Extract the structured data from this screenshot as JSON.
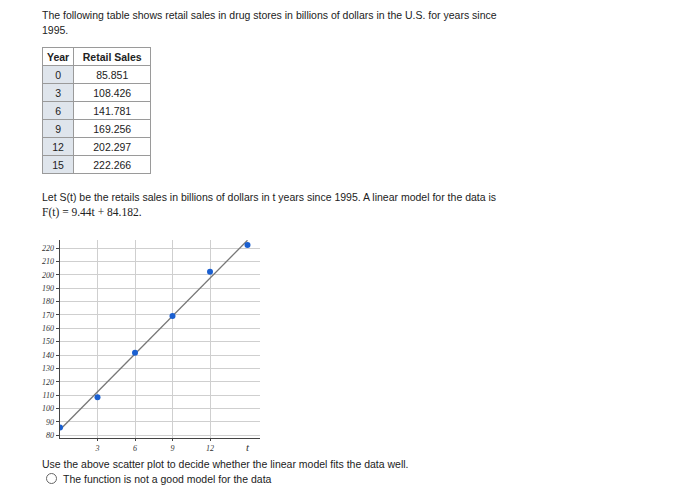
{
  "intro": "The following table shows retail sales in drug stores in billions of dollars in the U.S. for years since 1995.",
  "table": {
    "header": [
      "Year",
      "Retail Sales"
    ],
    "rows": [
      [
        0,
        85.851
      ],
      [
        3,
        108.426
      ],
      [
        6,
        141.781
      ],
      [
        9,
        169.256
      ],
      [
        12,
        202.297
      ],
      [
        15,
        222.266
      ]
    ]
  },
  "model_text": "Let S(t) be the retails sales in billions of dollars in t years since 1995. A linear model for the data is",
  "model": "F(t) = 9.44t + 84.182.",
  "chart_data": {
    "type": "scatter",
    "grid": true,
    "xlabel": "t",
    "xlim": [
      0,
      16
    ],
    "xticks": [
      3,
      6,
      9,
      12
    ],
    "ylim": [
      78,
      226
    ],
    "yticks": [
      80,
      90,
      100,
      110,
      120,
      130,
      140,
      150,
      160,
      170,
      180,
      190,
      200,
      210,
      220
    ],
    "series": [
      {
        "type": "line",
        "color": "#777777",
        "line_style": "solid",
        "x": [
          0,
          15
        ],
        "values": [
          84.182,
          225.8
        ]
      },
      {
        "type": "scatter",
        "color": "#1a5fd0",
        "marker": "circle",
        "x": [
          0,
          3,
          6,
          9,
          12,
          15
        ],
        "values": [
          85.851,
          108.426,
          141.781,
          169.256,
          202.297,
          222.266
        ]
      }
    ]
  },
  "question": "Use the above scatter plot to decide whether the linear model fits the data well.",
  "options": [
    "The function is not a good model for the data"
  ]
}
